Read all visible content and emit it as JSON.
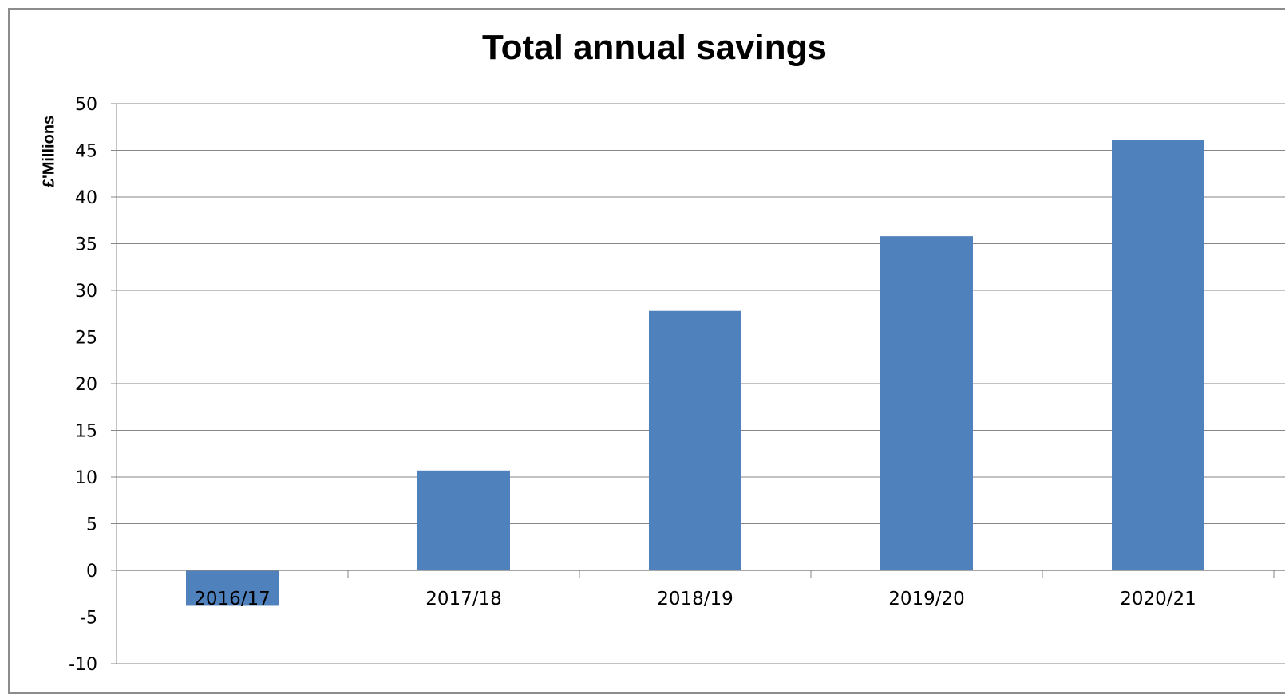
{
  "chart_data": {
    "type": "bar",
    "title": "Total annual savings",
    "xlabel": "",
    "ylabel": "£'Millions",
    "categories": [
      "2016/17",
      "2017/18",
      "2018/19",
      "2019/20",
      "2020/21"
    ],
    "values": [
      -3.8,
      10.7,
      27.8,
      35.8,
      46.1
    ],
    "ylim": [
      -10,
      50
    ],
    "yticks": [
      -10,
      -5,
      0,
      5,
      10,
      15,
      20,
      25,
      30,
      35,
      40,
      45,
      50
    ],
    "ytick_labels": [
      "-10",
      "-5",
      "0",
      "5",
      "10",
      "15",
      "20",
      "25",
      "30",
      "35",
      "40",
      "45",
      "50"
    ],
    "grid": true,
    "legend": "none",
    "bar_color": "#4f81bd",
    "grid_color": "#868686"
  }
}
